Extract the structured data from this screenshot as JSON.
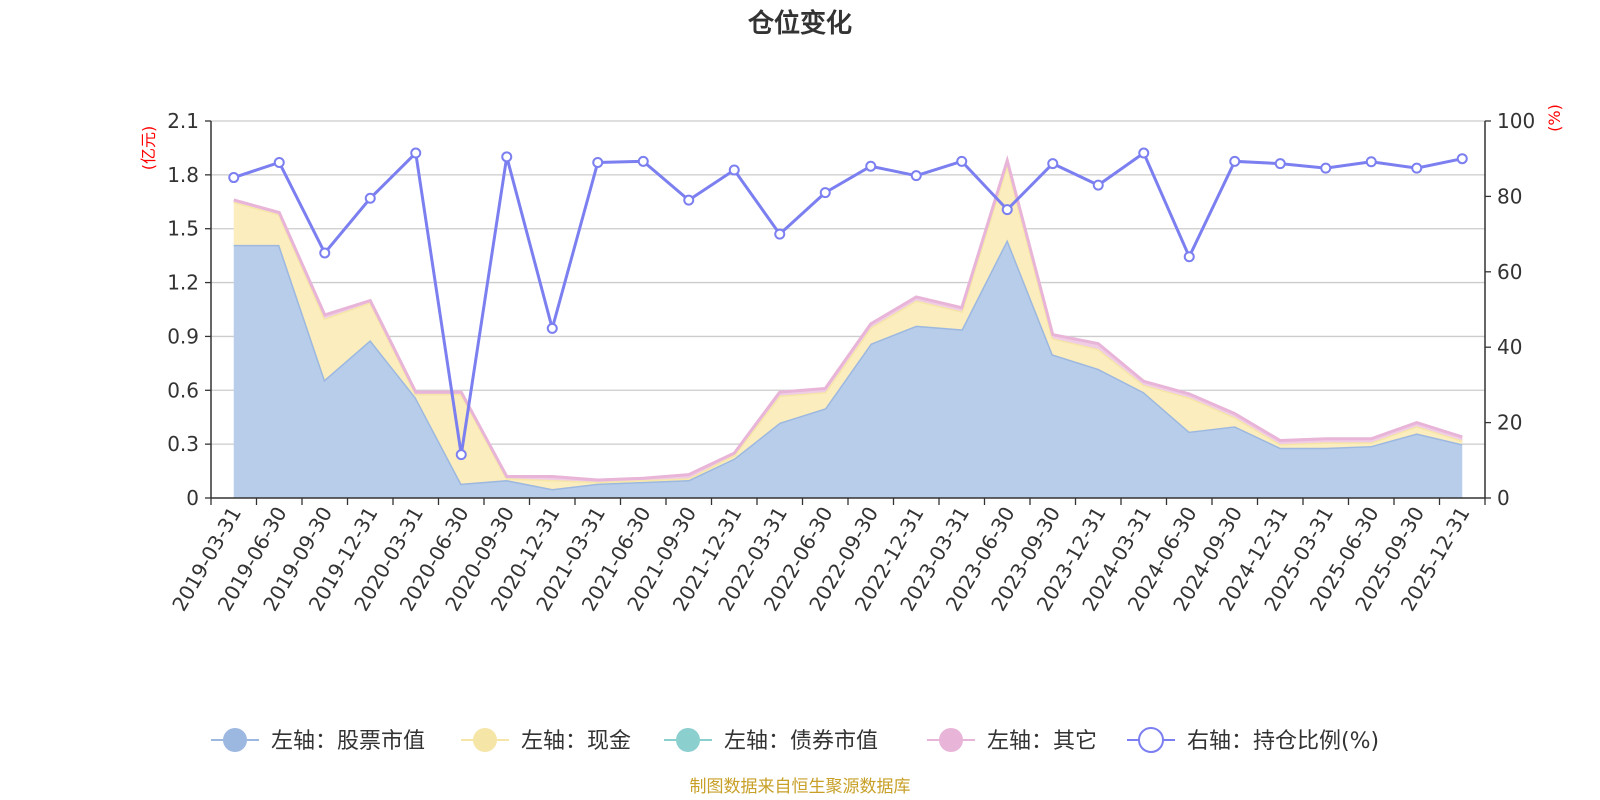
{
  "chart_data": {
    "type": "area",
    "title": "仓位变化",
    "left_unit": "(亿元)",
    "right_unit": "(%)",
    "source": "制图数据来自恒生聚源数据库",
    "categories": [
      "2019-03-31",
      "2019-06-30",
      "2019-09-30",
      "2019-12-31",
      "2020-03-31",
      "2020-06-30",
      "2020-09-30",
      "2020-12-31",
      "2021-03-31",
      "2021-06-30",
      "2021-09-30",
      "2021-12-31",
      "2022-03-31",
      "2022-06-30",
      "2022-09-30",
      "2022-12-31",
      "2023-03-31",
      "2023-06-30",
      "2023-09-30",
      "2023-12-31",
      "2024-03-31",
      "2024-06-30",
      "2024-09-30",
      "2024-12-31",
      "2025-03-31",
      "2025-06-30",
      "2025-09-30",
      "2025-12-31"
    ],
    "left_axis": {
      "min": 0,
      "max": 2.1,
      "ticks": [
        "0",
        "0.3",
        "0.6",
        "0.9",
        "1.2",
        "1.5",
        "1.8",
        "2.1"
      ]
    },
    "right_axis": {
      "min": 0,
      "max": 100,
      "ticks": [
        "0",
        "20",
        "40",
        "60",
        "80",
        "100"
      ]
    },
    "series": [
      {
        "name": "左轴：股票市值",
        "axis": "left",
        "color": "#9cb8e0",
        "fill": "#b8cdea",
        "values": [
          1.41,
          1.41,
          0.66,
          0.88,
          0.56,
          0.08,
          0.1,
          0.05,
          0.08,
          0.09,
          0.1,
          0.22,
          0.42,
          0.5,
          0.86,
          0.96,
          0.94,
          1.44,
          0.8,
          0.72,
          0.59,
          0.37,
          0.4,
          0.28,
          0.28,
          0.29,
          0.36,
          0.3
        ]
      },
      {
        "name": "左轴：现金",
        "axis": "left",
        "color": "#f5e6a8",
        "fill": "#fbedbd",
        "values": [
          0.24,
          0.17,
          0.34,
          0.21,
          0.02,
          0.5,
          0.01,
          0.05,
          0.01,
          0.01,
          0.01,
          0.02,
          0.15,
          0.09,
          0.09,
          0.14,
          0.1,
          0.42,
          0.09,
          0.11,
          0.04,
          0.19,
          0.05,
          0.02,
          0.03,
          0.02,
          0.04,
          0.02
        ]
      },
      {
        "name": "左轴：债券市值",
        "axis": "left",
        "color": "#8ccfcf",
        "fill": "#a8dcdc",
        "values": [
          0,
          0,
          0,
          0,
          0,
          0,
          0,
          0,
          0,
          0,
          0,
          0,
          0,
          0,
          0,
          0,
          0,
          0,
          0,
          0,
          0,
          0,
          0,
          0,
          0,
          0,
          0,
          0
        ]
      },
      {
        "name": "左轴：其它",
        "axis": "left",
        "color": "#e8b4d8",
        "fill": "#f0cde4",
        "values": [
          0.01,
          0.01,
          0.02,
          0.01,
          0.01,
          0.01,
          0.01,
          0.02,
          0.01,
          0.01,
          0.02,
          0.01,
          0.02,
          0.02,
          0.02,
          0.02,
          0.02,
          0.02,
          0.02,
          0.03,
          0.02,
          0.02,
          0.02,
          0.02,
          0.02,
          0.02,
          0.02,
          0.02
        ]
      },
      {
        "name": "右轴：持仓比例(%)",
        "axis": "right",
        "color": "#7b7ff0",
        "values": [
          85,
          89,
          65,
          79.5,
          91.5,
          11.5,
          90.5,
          45,
          89,
          89.3,
          79,
          87,
          70,
          81,
          88,
          85.5,
          89.3,
          76.5,
          88.7,
          83,
          91.5,
          64,
          89.3,
          88.7,
          87.5,
          89.2,
          87.5,
          90
        ]
      }
    ]
  }
}
